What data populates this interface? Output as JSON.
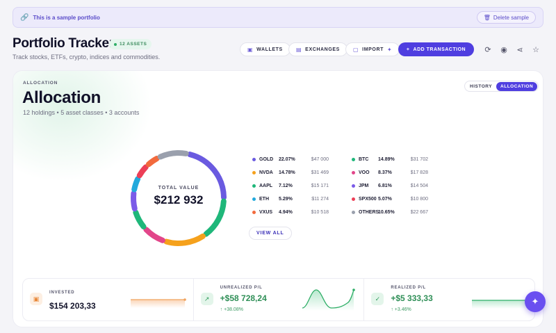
{
  "banner": {
    "text": "This is a sample portfolio",
    "delete_label": "Delete sample"
  },
  "header": {
    "title": "Portfolio Tracker",
    "assets_badge": "12 ASSETS",
    "subtitle": "Track stocks, ETFs, crypto, indices and commodities.",
    "wallets": "WALLETS",
    "exchanges": "EXCHANGES",
    "import": "IMPORT",
    "add_transaction": "ADD TRANSACTION"
  },
  "allocation": {
    "kicker": "ALLOCATION",
    "title": "Allocation",
    "subtitle": "12 holdings • 5 asset classes • 3 accounts",
    "tabs": [
      "HISTORY",
      "ALLOCATION"
    ],
    "active_tab": "ALLOCATION",
    "total_label": "TOTAL VALUE",
    "total_value": "$212 932",
    "view_all": "VIEW ALL",
    "holdings_left": [
      {
        "symbol": "GOLD",
        "pct": "22.07%",
        "value": "$47 000",
        "color": "#6a5ae0"
      },
      {
        "symbol": "NVDA",
        "pct": "14.78%",
        "value": "$31 469",
        "color": "#f5a11c"
      },
      {
        "symbol": "AAPL",
        "pct": "7.12%",
        "value": "$15 171",
        "color": "#1fb77a"
      },
      {
        "symbol": "ETH",
        "pct": "5.29%",
        "value": "$11 274",
        "color": "#22a9dc"
      },
      {
        "symbol": "VXUS",
        "pct": "4.94%",
        "value": "$10 518",
        "color": "#f26a3d"
      }
    ],
    "holdings_right": [
      {
        "symbol": "BTC",
        "pct": "14.89%",
        "value": "$31 702",
        "color": "#1fb77a"
      },
      {
        "symbol": "VOO",
        "pct": "8.37%",
        "value": "$17 828",
        "color": "#e2468a"
      },
      {
        "symbol": "JPM",
        "pct": "6.81%",
        "value": "$14 504",
        "color": "#7b5be8"
      },
      {
        "symbol": "SPX500",
        "pct": "5.07%",
        "value": "$10 800",
        "color": "#ec3f57"
      },
      {
        "symbol": "OTHERS",
        "pct": "10.65%",
        "value": "$22 667",
        "color": "#9aa0ad"
      }
    ]
  },
  "stats": [
    {
      "label": "INVESTED",
      "value": "$154 203,33",
      "change": "",
      "color": "#14142b",
      "icon": "wallet-icon"
    },
    {
      "label": "UNREALIZED P/L",
      "value": "+$58 728,24",
      "change": "↑ +38.08%",
      "color": "#2f8f57",
      "icon": "trend-icon"
    },
    {
      "label": "REALIZED P/L",
      "value": "+$5 333,33",
      "change": "↑ +3.46%",
      "color": "#2f8f57",
      "icon": "check-icon"
    }
  ]
}
